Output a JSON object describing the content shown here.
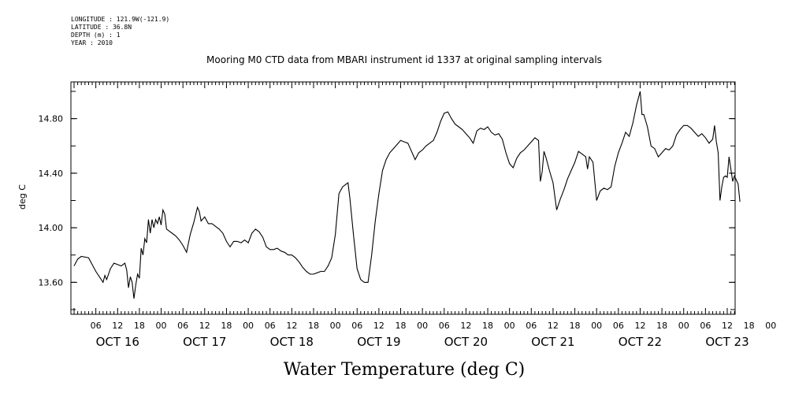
{
  "metadata_lines": [
    "LONGITUDE : 121.9W(-121.9)",
    "LATITUDE : 36.8N",
    "DEPTH (m) : 1",
    "YEAR : 2010"
  ],
  "chart_data": {
    "type": "line",
    "title": "Mooring M0 CTD data from MBARI instrument id 1337 at original sampling intervals",
    "xlabel": "Water Temperature (deg C)",
    "ylabel": "deg C",
    "xlim": [
      0,
      180
    ],
    "x_units": "hours after 2010-10-16 00:00",
    "ylim": [
      13.4,
      15.0
    ],
    "grid": false,
    "y_ticks": [
      13.6,
      14.0,
      14.4,
      14.8
    ],
    "y_tick_labels": [
      "13.60",
      "14.00",
      "14.40",
      "14.80"
    ],
    "x_hour_ticks": [
      6,
      12,
      18,
      0,
      6,
      12,
      18,
      0,
      6,
      12,
      18,
      0,
      6,
      12,
      18,
      0,
      6,
      12,
      18,
      0,
      6,
      12,
      18,
      0,
      6,
      12,
      18,
      0,
      6,
      12,
      18,
      0
    ],
    "x_date_labels": [
      "OCT 16",
      "OCT 17",
      "OCT 18",
      "OCT 19",
      "OCT 20",
      "OCT 21",
      "OCT 22",
      "OCT 23"
    ],
    "series": [
      {
        "values": [
          [
            0,
            13.72
          ],
          [
            1,
            13.77
          ],
          [
            2,
            13.79
          ],
          [
            4,
            13.78
          ],
          [
            5,
            13.73
          ],
          [
            6,
            13.68
          ],
          [
            7,
            13.64
          ],
          [
            8,
            13.6
          ],
          [
            8.5,
            13.65
          ],
          [
            9,
            13.62
          ],
          [
            10,
            13.7
          ],
          [
            11,
            13.74
          ],
          [
            12,
            13.73
          ],
          [
            13,
            13.72
          ],
          [
            14,
            13.74
          ],
          [
            14.5,
            13.69
          ],
          [
            15,
            13.56
          ],
          [
            15.5,
            13.64
          ],
          [
            16,
            13.6
          ],
          [
            16.5,
            13.48
          ],
          [
            17,
            13.58
          ],
          [
            17.5,
            13.66
          ],
          [
            18,
            13.63
          ],
          [
            18.5,
            13.85
          ],
          [
            19,
            13.8
          ],
          [
            19.5,
            13.92
          ],
          [
            20,
            13.89
          ],
          [
            20.5,
            14.06
          ],
          [
            21,
            13.96
          ],
          [
            21.5,
            14.06
          ],
          [
            22,
            14.0
          ],
          [
            22.5,
            14.06
          ],
          [
            23,
            14.03
          ],
          [
            23.5,
            14.08
          ],
          [
            24,
            14.02
          ],
          [
            24.5,
            14.13
          ],
          [
            25,
            14.1
          ],
          [
            25.5,
            13.99
          ],
          [
            26,
            13.98
          ],
          [
            27,
            13.96
          ],
          [
            28,
            13.94
          ],
          [
            29,
            13.91
          ],
          [
            30,
            13.87
          ],
          [
            31,
            13.82
          ],
          [
            32,
            13.95
          ],
          [
            33,
            14.04
          ],
          [
            34,
            14.15
          ],
          [
            34.5,
            14.12
          ],
          [
            35,
            14.05
          ],
          [
            36,
            14.08
          ],
          [
            37,
            14.03
          ],
          [
            38,
            14.03
          ],
          [
            39,
            14.01
          ],
          [
            40,
            13.99
          ],
          [
            41,
            13.96
          ],
          [
            42,
            13.9
          ],
          [
            43,
            13.86
          ],
          [
            44,
            13.9
          ],
          [
            45,
            13.9
          ],
          [
            46,
            13.89
          ],
          [
            47,
            13.91
          ],
          [
            48,
            13.89
          ],
          [
            49,
            13.96
          ],
          [
            50,
            13.99
          ],
          [
            51,
            13.97
          ],
          [
            52,
            13.93
          ],
          [
            53,
            13.86
          ],
          [
            54,
            13.84
          ],
          [
            55,
            13.84
          ],
          [
            56,
            13.85
          ],
          [
            57,
            13.83
          ],
          [
            58,
            13.82
          ],
          [
            59,
            13.8
          ],
          [
            60,
            13.8
          ],
          [
            61,
            13.78
          ],
          [
            62,
            13.75
          ],
          [
            63,
            13.71
          ],
          [
            64,
            13.68
          ],
          [
            65,
            13.66
          ],
          [
            66,
            13.66
          ],
          [
            67,
            13.67
          ],
          [
            68,
            13.68
          ],
          [
            69,
            13.68
          ],
          [
            70,
            13.72
          ],
          [
            71,
            13.78
          ],
          [
            72,
            13.95
          ],
          [
            73,
            14.25
          ],
          [
            74,
            14.3
          ],
          [
            75,
            14.32
          ],
          [
            75.5,
            14.33
          ],
          [
            76,
            14.22
          ],
          [
            77,
            13.95
          ],
          [
            78,
            13.7
          ],
          [
            79,
            13.62
          ],
          [
            80,
            13.6
          ],
          [
            81,
            13.6
          ],
          [
            82,
            13.8
          ],
          [
            83,
            14.05
          ],
          [
            84,
            14.25
          ],
          [
            85,
            14.42
          ],
          [
            86,
            14.5
          ],
          [
            87,
            14.55
          ],
          [
            88,
            14.58
          ],
          [
            89,
            14.61
          ],
          [
            90,
            14.64
          ],
          [
            91,
            14.63
          ],
          [
            92,
            14.62
          ],
          [
            93,
            14.56
          ],
          [
            94,
            14.5
          ],
          [
            95,
            14.55
          ],
          [
            96,
            14.57
          ],
          [
            97,
            14.6
          ],
          [
            98,
            14.62
          ],
          [
            99,
            14.64
          ],
          [
            100,
            14.7
          ],
          [
            101,
            14.78
          ],
          [
            102,
            14.84
          ],
          [
            103,
            14.85
          ],
          [
            104,
            14.8
          ],
          [
            105,
            14.76
          ],
          [
            106,
            14.74
          ],
          [
            107,
            14.72
          ],
          [
            108,
            14.69
          ],
          [
            109,
            14.66
          ],
          [
            110,
            14.62
          ],
          [
            111,
            14.71
          ],
          [
            112,
            14.73
          ],
          [
            113,
            14.72
          ],
          [
            114,
            14.74
          ],
          [
            115,
            14.7
          ],
          [
            116,
            14.68
          ],
          [
            117,
            14.69
          ],
          [
            118,
            14.65
          ],
          [
            119,
            14.55
          ],
          [
            120,
            14.47
          ],
          [
            121,
            14.44
          ],
          [
            122,
            14.51
          ],
          [
            123,
            14.55
          ],
          [
            124,
            14.57
          ],
          [
            125,
            14.6
          ],
          [
            126,
            14.63
          ],
          [
            127,
            14.66
          ],
          [
            128,
            14.64
          ],
          [
            128.5,
            14.34
          ],
          [
            129,
            14.41
          ],
          [
            129.5,
            14.56
          ],
          [
            130,
            14.52
          ],
          [
            131,
            14.42
          ],
          [
            132,
            14.33
          ],
          [
            133,
            14.13
          ],
          [
            134,
            14.21
          ],
          [
            135,
            14.28
          ],
          [
            136,
            14.36
          ],
          [
            137,
            14.42
          ],
          [
            138,
            14.48
          ],
          [
            139,
            14.56
          ],
          [
            140,
            14.54
          ],
          [
            141,
            14.52
          ],
          [
            141.5,
            14.43
          ],
          [
            142,
            14.52
          ],
          [
            143,
            14.48
          ],
          [
            144,
            14.2
          ],
          [
            145,
            14.27
          ],
          [
            146,
            14.29
          ],
          [
            147,
            14.28
          ],
          [
            148,
            14.3
          ],
          [
            149,
            14.45
          ],
          [
            150,
            14.55
          ],
          [
            151,
            14.62
          ],
          [
            152,
            14.7
          ],
          [
            153,
            14.67
          ],
          [
            154,
            14.77
          ],
          [
            155,
            14.9
          ],
          [
            156,
            15.0
          ],
          [
            156.5,
            14.83
          ],
          [
            157,
            14.83
          ],
          [
            158,
            14.74
          ],
          [
            159,
            14.6
          ],
          [
            160,
            14.58
          ],
          [
            161,
            14.52
          ],
          [
            162,
            14.55
          ],
          [
            163,
            14.58
          ],
          [
            164,
            14.57
          ],
          [
            165,
            14.6
          ],
          [
            166,
            14.68
          ],
          [
            167,
            14.72
          ],
          [
            168,
            14.75
          ],
          [
            169,
            14.75
          ],
          [
            170,
            14.73
          ],
          [
            171,
            14.7
          ],
          [
            172,
            14.67
          ],
          [
            173,
            14.69
          ],
          [
            174,
            14.66
          ],
          [
            175,
            14.62
          ],
          [
            176,
            14.65
          ],
          [
            176.5,
            14.75
          ],
          [
            177,
            14.63
          ],
          [
            177.5,
            14.55
          ],
          [
            178,
            14.2
          ],
          [
            178.5,
            14.3
          ],
          [
            179,
            14.37
          ],
          [
            179.5,
            14.38
          ],
          [
            180,
            14.37
          ],
          [
            180.5,
            14.52
          ],
          [
            181,
            14.43
          ],
          [
            181.5,
            14.34
          ],
          [
            182,
            14.38
          ],
          [
            182.5,
            14.35
          ],
          [
            183,
            14.32
          ],
          [
            183.5,
            14.19
          ]
        ]
      }
    ]
  }
}
